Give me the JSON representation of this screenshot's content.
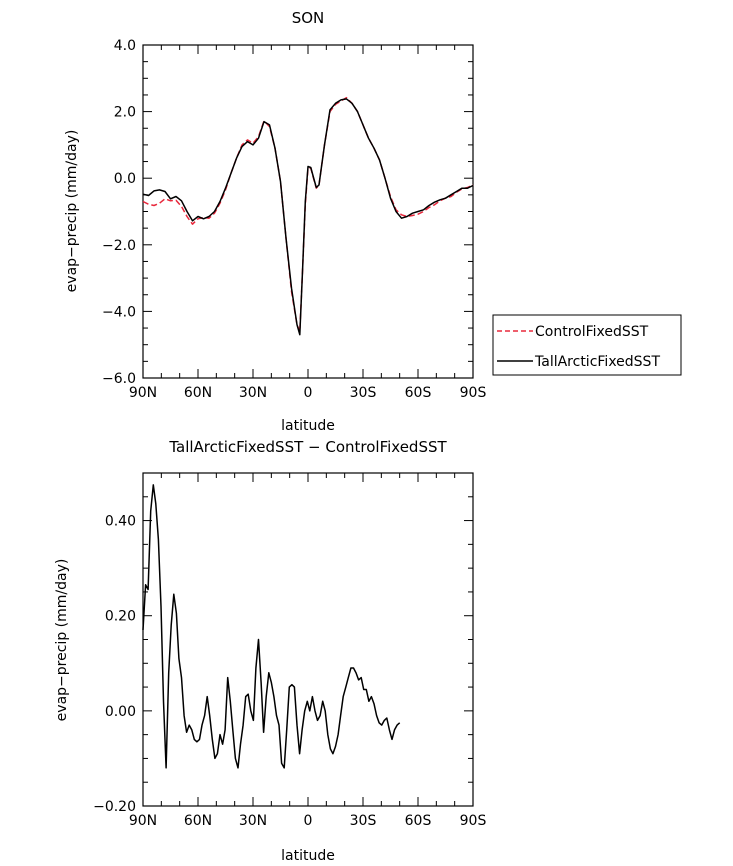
{
  "chart_data": [
    {
      "type": "line",
      "title": "SON",
      "xlabel": "latitude",
      "ylabel": "evap−precip (mm/day)",
      "xlim": [
        90,
        -90
      ],
      "ylim": [
        -6.0,
        4.0
      ],
      "x_ticks": [
        90,
        60,
        30,
        0,
        -30,
        -60,
        -90
      ],
      "x_tick_labels": [
        "90N",
        "60N",
        "30N",
        "0",
        "30S",
        "60S",
        "90S"
      ],
      "y_ticks": [
        4.0,
        2.0,
        0.0,
        -2.0,
        -4.0,
        -6.0
      ],
      "y_tick_labels": [
        "4.0",
        "2.0",
        "0.0",
        "−2.0",
        "−4.0",
        "−6.0"
      ],
      "legend_position": "right",
      "series": [
        {
          "name": "ControlFixedSST",
          "color": "#e8283c",
          "dash": "dashed",
          "points": [
            [
              90,
              -0.7
            ],
            [
              87,
              -0.78
            ],
            [
              84,
              -0.82
            ],
            [
              81,
              -0.75
            ],
            [
              78,
              -0.62
            ],
            [
              75,
              -0.68
            ],
            [
              72,
              -0.66
            ],
            [
              69,
              -0.85
            ],
            [
              66,
              -1.15
            ],
            [
              63,
              -1.38
            ],
            [
              60,
              -1.22
            ],
            [
              57,
              -1.18
            ],
            [
              54,
              -1.2
            ],
            [
              51,
              -1.05
            ],
            [
              48,
              -0.75
            ],
            [
              45,
              -0.35
            ],
            [
              42,
              0.15
            ],
            [
              39,
              0.6
            ],
            [
              36,
              1.0
            ],
            [
              33,
              1.15
            ],
            [
              30,
              1.05
            ],
            [
              27,
              1.25
            ],
            [
              24,
              1.72
            ],
            [
              21,
              1.55
            ],
            [
              18,
              0.9
            ],
            [
              15,
              -0.1
            ],
            [
              12,
              -1.8
            ],
            [
              9,
              -3.4
            ],
            [
              6,
              -4.4
            ],
            [
              4.5,
              -4.6
            ],
            [
              3,
              -2.8
            ],
            [
              1.5,
              -0.8
            ],
            [
              0,
              0.3
            ],
            [
              -1.5,
              0.3
            ],
            [
              -3,
              0.0
            ],
            [
              -4.5,
              -0.3
            ],
            [
              -6,
              -0.2
            ],
            [
              -9,
              1.0
            ],
            [
              -12,
              2.0
            ],
            [
              -15,
              2.22
            ],
            [
              -18,
              2.32
            ],
            [
              -21,
              2.42
            ],
            [
              -24,
              2.25
            ],
            [
              -27,
              2.0
            ],
            [
              -30,
              1.6
            ],
            [
              -33,
              1.2
            ],
            [
              -36,
              0.9
            ],
            [
              -39,
              0.55
            ],
            [
              -42,
              0.0
            ],
            [
              -45,
              -0.55
            ],
            [
              -48,
              -0.95
            ],
            [
              -51,
              -1.1
            ],
            [
              -54,
              -1.15
            ],
            [
              -57,
              -1.12
            ],
            [
              -60,
              -1.08
            ],
            [
              -63,
              -1.0
            ],
            [
              -66,
              -0.88
            ],
            [
              -69,
              -0.8
            ],
            [
              -72,
              -0.68
            ],
            [
              -75,
              -0.6
            ],
            [
              -78,
              -0.55
            ],
            [
              -81,
              -0.42
            ],
            [
              -84,
              -0.32
            ],
            [
              -87,
              -0.28
            ],
            [
              -90,
              -0.2
            ]
          ]
        },
        {
          "name": "TallArcticFixedSST",
          "color": "#000000",
          "dash": "solid",
          "points": [
            [
              90,
              -0.48
            ],
            [
              87,
              -0.52
            ],
            [
              84,
              -0.38
            ],
            [
              81,
              -0.35
            ],
            [
              78,
              -0.4
            ],
            [
              75,
              -0.62
            ],
            [
              72,
              -0.55
            ],
            [
              69,
              -0.68
            ],
            [
              66,
              -1.0
            ],
            [
              63,
              -1.28
            ],
            [
              60,
              -1.15
            ],
            [
              57,
              -1.22
            ],
            [
              54,
              -1.15
            ],
            [
              51,
              -1.0
            ],
            [
              48,
              -0.7
            ],
            [
              45,
              -0.3
            ],
            [
              42,
              0.15
            ],
            [
              39,
              0.6
            ],
            [
              36,
              0.95
            ],
            [
              33,
              1.1
            ],
            [
              30,
              1.0
            ],
            [
              27,
              1.2
            ],
            [
              24,
              1.7
            ],
            [
              21,
              1.6
            ],
            [
              18,
              0.9
            ],
            [
              15,
              -0.1
            ],
            [
              12,
              -1.8
            ],
            [
              9,
              -3.3
            ],
            [
              6,
              -4.4
            ],
            [
              4.5,
              -4.7
            ],
            [
              3,
              -2.8
            ],
            [
              1.5,
              -0.7
            ],
            [
              0,
              0.35
            ],
            [
              -1.5,
              0.32
            ],
            [
              -3,
              0.02
            ],
            [
              -4.5,
              -0.28
            ],
            [
              -6,
              -0.2
            ],
            [
              -9,
              1.0
            ],
            [
              -12,
              2.05
            ],
            [
              -15,
              2.25
            ],
            [
              -18,
              2.35
            ],
            [
              -21,
              2.38
            ],
            [
              -24,
              2.25
            ],
            [
              -27,
              2.0
            ],
            [
              -30,
              1.6
            ],
            [
              -33,
              1.2
            ],
            [
              -36,
              0.9
            ],
            [
              -39,
              0.55
            ],
            [
              -42,
              0.0
            ],
            [
              -45,
              -0.6
            ],
            [
              -48,
              -1.0
            ],
            [
              -51,
              -1.2
            ],
            [
              -54,
              -1.15
            ],
            [
              -57,
              -1.05
            ],
            [
              -60,
              -1.0
            ],
            [
              -63,
              -0.95
            ],
            [
              -66,
              -0.82
            ],
            [
              -69,
              -0.72
            ],
            [
              -72,
              -0.65
            ],
            [
              -75,
              -0.6
            ],
            [
              -78,
              -0.5
            ],
            [
              -81,
              -0.4
            ],
            [
              -84,
              -0.3
            ],
            [
              -87,
              -0.3
            ],
            [
              -90,
              -0.22
            ]
          ]
        }
      ]
    },
    {
      "type": "line",
      "title": "TallArcticFixedSST − ControlFixedSST",
      "xlabel": "latitude",
      "ylabel": "evap−precip (mm/day)",
      "xlim": [
        90,
        -90
      ],
      "ylim": [
        -0.2,
        0.5
      ],
      "x_ticks": [
        90,
        60,
        30,
        0,
        -30,
        -60,
        -90
      ],
      "x_tick_labels": [
        "90N",
        "60N",
        "30N",
        "0",
        "30S",
        "60S",
        "90S"
      ],
      "y_ticks": [
        0.4,
        0.2,
        0.0,
        -0.2
      ],
      "y_tick_labels": [
        "0.40",
        "0.20",
        "0.00",
        "−0.20"
      ],
      "series": [
        {
          "color": "#000000",
          "dash": "solid",
          "points": [
            [
              90,
              0.17
            ],
            [
              88.6,
              0.265
            ],
            [
              87.2,
              0.255
            ],
            [
              85.8,
              0.42
            ],
            [
              84.4,
              0.475
            ],
            [
              83,
              0.435
            ],
            [
              81.6,
              0.36
            ],
            [
              80.2,
              0.22
            ],
            [
              78.8,
              0.02
            ],
            [
              77.4,
              -0.12
            ],
            [
              76,
              0.08
            ],
            [
              74.6,
              0.18
            ],
            [
              73.2,
              0.245
            ],
            [
              71.8,
              0.205
            ],
            [
              70.4,
              0.11
            ],
            [
              69,
              0.07
            ],
            [
              67.6,
              -0.01
            ],
            [
              66.2,
              -0.045
            ],
            [
              64.8,
              -0.03
            ],
            [
              63.4,
              -0.04
            ],
            [
              62,
              -0.06
            ],
            [
              60.6,
              -0.065
            ],
            [
              59.2,
              -0.06
            ],
            [
              57.8,
              -0.03
            ],
            [
              56.4,
              -0.01
            ],
            [
              55,
              0.03
            ],
            [
              53.6,
              -0.01
            ],
            [
              52.2,
              -0.06
            ],
            [
              50.8,
              -0.1
            ],
            [
              49.4,
              -0.09
            ],
            [
              48,
              -0.05
            ],
            [
              46.6,
              -0.07
            ],
            [
              45.2,
              -0.04
            ],
            [
              43.8,
              0.07
            ],
            [
              42.4,
              0.02
            ],
            [
              41,
              -0.04
            ],
            [
              39.6,
              -0.1
            ],
            [
              38.2,
              -0.12
            ],
            [
              36.8,
              -0.07
            ],
            [
              35.4,
              -0.03
            ],
            [
              34,
              0.03
            ],
            [
              32.6,
              0.035
            ],
            [
              31.2,
              0.0
            ],
            [
              29.8,
              -0.02
            ],
            [
              28.4,
              0.09
            ],
            [
              27,
              0.15
            ],
            [
              25.6,
              0.06
            ],
            [
              24.2,
              -0.045
            ],
            [
              22.8,
              0.03
            ],
            [
              21.4,
              0.08
            ],
            [
              20,
              0.06
            ],
            [
              18.6,
              0.03
            ],
            [
              17.2,
              -0.01
            ],
            [
              15.8,
              -0.03
            ],
            [
              14.4,
              -0.11
            ],
            [
              13,
              -0.12
            ],
            [
              11.6,
              -0.04
            ],
            [
              10.2,
              0.05
            ],
            [
              8.8,
              0.055
            ],
            [
              7.4,
              0.05
            ],
            [
              6,
              -0.03
            ],
            [
              4.6,
              -0.09
            ],
            [
              3.2,
              -0.04
            ],
            [
              1.8,
              0.0
            ],
            [
              0.4,
              0.02
            ],
            [
              -1,
              0.0
            ],
            [
              -2.4,
              0.03
            ],
            [
              -3.8,
              0.0
            ],
            [
              -5.2,
              -0.02
            ],
            [
              -6.6,
              -0.01
            ],
            [
              -8,
              0.02
            ],
            [
              -9.4,
              0.0
            ],
            [
              -10.8,
              -0.05
            ],
            [
              -12.2,
              -0.08
            ],
            [
              -13.6,
              -0.09
            ],
            [
              -15,
              -0.075
            ],
            [
              -16.4,
              -0.05
            ],
            [
              -17.8,
              -0.01
            ],
            [
              -19.2,
              0.03
            ],
            [
              -20.6,
              0.05
            ],
            [
              -22,
              0.07
            ],
            [
              -23.4,
              0.09
            ],
            [
              -24.8,
              0.09
            ],
            [
              -26.2,
              0.08
            ],
            [
              -27.6,
              0.065
            ],
            [
              -29,
              0.07
            ],
            [
              -30.4,
              0.045
            ],
            [
              -31.8,
              0.045
            ],
            [
              -33.2,
              0.02
            ],
            [
              -34.6,
              0.03
            ],
            [
              -36,
              0.015
            ],
            [
              -37.4,
              -0.01
            ],
            [
              -38.8,
              -0.025
            ],
            [
              -40.2,
              -0.03
            ],
            [
              -41.6,
              -0.02
            ],
            [
              -43,
              -0.015
            ],
            [
              -44.4,
              -0.04
            ],
            [
              -45.8,
              -0.06
            ],
            [
              -47.2,
              -0.04
            ],
            [
              -48.6,
              -0.03
            ],
            [
              -50,
              -0.025
            ]
          ]
        }
      ]
    }
  ]
}
